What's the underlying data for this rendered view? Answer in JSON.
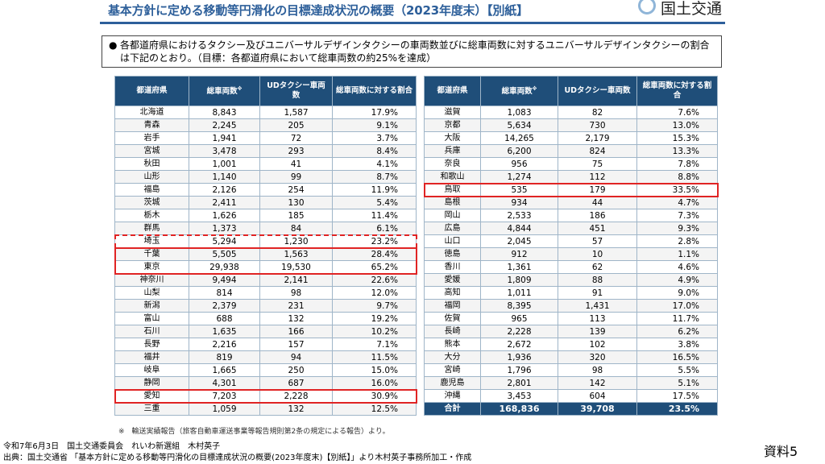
{
  "header": {
    "title": "基本方針に定める移動等円滑化の目標達成状況の概要（2023年度末）【別紙】",
    "ministry": "国土交通"
  },
  "description": {
    "bullet": "●",
    "text": "各都道府県におけるタクシー及びユニバーサルデザインタクシーの車両数並びに総車両数に対するユニバーサルデザインタクシーの割合は下記のとおり。（目標：各都道府県において総車両数の約25%を達成）"
  },
  "table_headers": {
    "left": {
      "pref": "都道府県",
      "total": "総車両数",
      "total_mark": "※",
      "ud": "UDタクシー車両数",
      "ratio": "総車両数に対する割合"
    },
    "right": {
      "pref": "都道府県",
      "total": "総車両数",
      "total_mark": "※",
      "ud": "UDタクシー車両数",
      "ratio": "総車両数に対する割合"
    }
  },
  "left_rows": [
    {
      "pref": "北海道",
      "total": "8,843",
      "ud": "1,587",
      "ratio": "17.9%"
    },
    {
      "pref": "青森",
      "total": "2,245",
      "ud": "205",
      "ratio": "9.1%"
    },
    {
      "pref": "岩手",
      "total": "1,941",
      "ud": "72",
      "ratio": "3.7%"
    },
    {
      "pref": "宮城",
      "total": "3,478",
      "ud": "293",
      "ratio": "8.4%"
    },
    {
      "pref": "秋田",
      "total": "1,001",
      "ud": "41",
      "ratio": "4.1%"
    },
    {
      "pref": "山形",
      "total": "1,140",
      "ud": "99",
      "ratio": "8.7%"
    },
    {
      "pref": "福島",
      "total": "2,126",
      "ud": "254",
      "ratio": "11.9%"
    },
    {
      "pref": "茨城",
      "total": "2,411",
      "ud": "130",
      "ratio": "5.4%"
    },
    {
      "pref": "栃木",
      "total": "1,626",
      "ud": "185",
      "ratio": "11.4%"
    },
    {
      "pref": "群馬",
      "total": "1,373",
      "ud": "84",
      "ratio": "6.1%"
    },
    {
      "pref": "埼玉",
      "total": "5,294",
      "ud": "1,230",
      "ratio": "23.2%"
    },
    {
      "pref": "千葉",
      "total": "5,505",
      "ud": "1,563",
      "ratio": "28.4%"
    },
    {
      "pref": "東京",
      "total": "29,938",
      "ud": "19,530",
      "ratio": "65.2%"
    },
    {
      "pref": "神奈川",
      "total": "9,494",
      "ud": "2,141",
      "ratio": "22.6%"
    },
    {
      "pref": "山梨",
      "total": "814",
      "ud": "98",
      "ratio": "12.0%"
    },
    {
      "pref": "新潟",
      "total": "2,379",
      "ud": "231",
      "ratio": "9.7%"
    },
    {
      "pref": "富山",
      "total": "688",
      "ud": "132",
      "ratio": "19.2%"
    },
    {
      "pref": "石川",
      "total": "1,635",
      "ud": "166",
      "ratio": "10.2%"
    },
    {
      "pref": "長野",
      "total": "2,216",
      "ud": "157",
      "ratio": "7.1%"
    },
    {
      "pref": "福井",
      "total": "819",
      "ud": "94",
      "ratio": "11.5%"
    },
    {
      "pref": "岐阜",
      "total": "1,665",
      "ud": "250",
      "ratio": "15.0%"
    },
    {
      "pref": "静岡",
      "total": "4,301",
      "ud": "687",
      "ratio": "16.0%"
    },
    {
      "pref": "愛知",
      "total": "7,203",
      "ud": "2,228",
      "ratio": "30.9%"
    },
    {
      "pref": "三重",
      "total": "1,059",
      "ud": "132",
      "ratio": "12.5%"
    }
  ],
  "right_rows": [
    {
      "pref": "滋賀",
      "total": "1,083",
      "ud": "82",
      "ratio": "7.6%"
    },
    {
      "pref": "京都",
      "total": "5,634",
      "ud": "730",
      "ratio": "13.0%"
    },
    {
      "pref": "大阪",
      "total": "14,265",
      "ud": "2,179",
      "ratio": "15.3%"
    },
    {
      "pref": "兵庫",
      "total": "6,200",
      "ud": "824",
      "ratio": "13.3%"
    },
    {
      "pref": "奈良",
      "total": "956",
      "ud": "75",
      "ratio": "7.8%"
    },
    {
      "pref": "和歌山",
      "total": "1,274",
      "ud": "112",
      "ratio": "8.8%"
    },
    {
      "pref": "鳥取",
      "total": "535",
      "ud": "179",
      "ratio": "33.5%"
    },
    {
      "pref": "島根",
      "total": "934",
      "ud": "44",
      "ratio": "4.7%"
    },
    {
      "pref": "岡山",
      "total": "2,533",
      "ud": "186",
      "ratio": "7.3%"
    },
    {
      "pref": "広島",
      "total": "4,844",
      "ud": "451",
      "ratio": "9.3%"
    },
    {
      "pref": "山口",
      "total": "2,045",
      "ud": "57",
      "ratio": "2.8%"
    },
    {
      "pref": "徳島",
      "total": "912",
      "ud": "10",
      "ratio": "1.1%"
    },
    {
      "pref": "香川",
      "total": "1,361",
      "ud": "62",
      "ratio": "4.6%"
    },
    {
      "pref": "愛媛",
      "total": "1,809",
      "ud": "88",
      "ratio": "4.9%"
    },
    {
      "pref": "高知",
      "total": "1,011",
      "ud": "91",
      "ratio": "9.0%"
    },
    {
      "pref": "福岡",
      "total": "8,395",
      "ud": "1,431",
      "ratio": "17.0%"
    },
    {
      "pref": "佐賀",
      "total": "965",
      "ud": "113",
      "ratio": "11.7%"
    },
    {
      "pref": "長崎",
      "total": "2,228",
      "ud": "139",
      "ratio": "6.2%"
    },
    {
      "pref": "熊本",
      "total": "2,672",
      "ud": "102",
      "ratio": "3.8%"
    },
    {
      "pref": "大分",
      "total": "1,936",
      "ud": "320",
      "ratio": "16.5%"
    },
    {
      "pref": "宮崎",
      "total": "1,796",
      "ud": "98",
      "ratio": "5.5%"
    },
    {
      "pref": "鹿児島",
      "total": "2,801",
      "ud": "142",
      "ratio": "5.1%"
    },
    {
      "pref": "沖縄",
      "total": "3,453",
      "ud": "604",
      "ratio": "17.5%"
    }
  ],
  "total_row": {
    "pref": "合計",
    "total": "168,836",
    "ud": "39,708",
    "ratio": "23.5%"
  },
  "footnote": "※　輸送実績報告（旅客自動車運送事業等報告規則第2条の規定による報告）より。",
  "footer": {
    "line1": "令和7年6月3日　国土交通委員会　れいわ新選組　木村英子",
    "line2": "出典：国土交通省 「基本方針に定める移動等円滑化の目標達成状況の概要(2023年度末)【別紙】」より木村英子事務所加工・作成"
  },
  "doc_label": "資料5",
  "colors": {
    "header_bg": "#1f4e79",
    "title": "#2d5f9a",
    "highlight": "#e02424"
  },
  "icons": {
    "ministry_logo": "mlit-emblem-icon"
  }
}
